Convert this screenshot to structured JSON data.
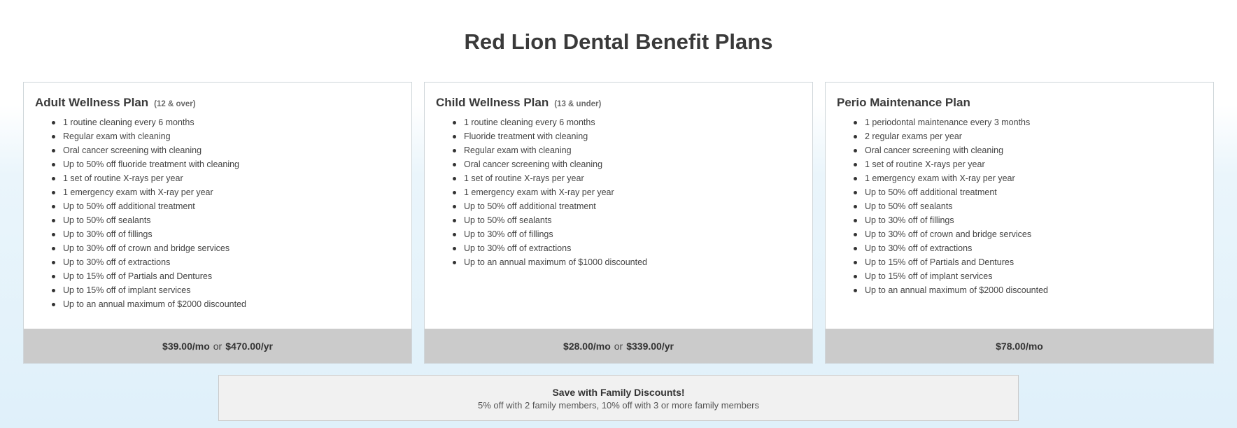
{
  "page": {
    "title": "Red Lion Dental Benefit Plans"
  },
  "plans": [
    {
      "name": "Adult Wellness Plan",
      "subtitle": "(12 & over)",
      "features": [
        "1 routine cleaning every 6 months",
        "Regular exam with cleaning",
        "Oral cancer screening with cleaning",
        "Up to 50% off fluoride treatment with cleaning",
        "1 set of routine X-rays per year",
        "1 emergency exam with X-ray per year",
        "Up to 50% off additional treatment",
        "Up to 50% off sealants",
        "Up to 30% off of fillings",
        "Up to 30% off of crown and bridge services",
        "Up to 30% off of extractions",
        "Up to 15% off of Partials and Dentures",
        "Up to 15% off of implant services",
        "Up to an annual maximum of $2000 discounted"
      ],
      "price_monthly": "$39.00/mo",
      "price_or": "or",
      "price_yearly": "$470.00/yr"
    },
    {
      "name": "Child Wellness Plan",
      "subtitle": "(13 & under)",
      "features": [
        "1 routine cleaning every 6 months",
        "Fluoride treatment with cleaning",
        "Regular exam with cleaning",
        "Oral cancer screening with cleaning",
        "1 set of routine X-rays per year",
        "1 emergency exam with X-ray per year",
        "Up to 50% off additional treatment",
        "Up to 50% off sealants",
        "Up to 30% off of fillings",
        "Up to 30% off of extractions",
        "Up to an annual maximum of $1000 discounted"
      ],
      "price_monthly": "$28.00/mo",
      "price_or": "or",
      "price_yearly": "$339.00/yr"
    },
    {
      "name": "Perio Maintenance Plan",
      "subtitle": "",
      "features": [
        "1 periodontal maintenance every 3 months",
        "2 regular exams per year",
        "Oral cancer screening with cleaning",
        "1 set of routine X-rays per year",
        "1 emergency exam with X-ray per year",
        "Up to 50% off additional treatment",
        "Up to 50% off sealants",
        "Up to 30% off of fillings",
        "Up to 30% off of crown and bridge services",
        "Up to 30% off of extractions",
        "Up to 15% off of Partials and Dentures",
        "Up to 15% off of implant services",
        "Up to an annual maximum of $2000 discounted"
      ],
      "price_monthly": "$78.00/mo",
      "price_or": "",
      "price_yearly": ""
    }
  ],
  "discount": {
    "title": "Save with Family Discounts!",
    "text": "5% off with 2 family members, 10% off with 3 or more family members"
  }
}
